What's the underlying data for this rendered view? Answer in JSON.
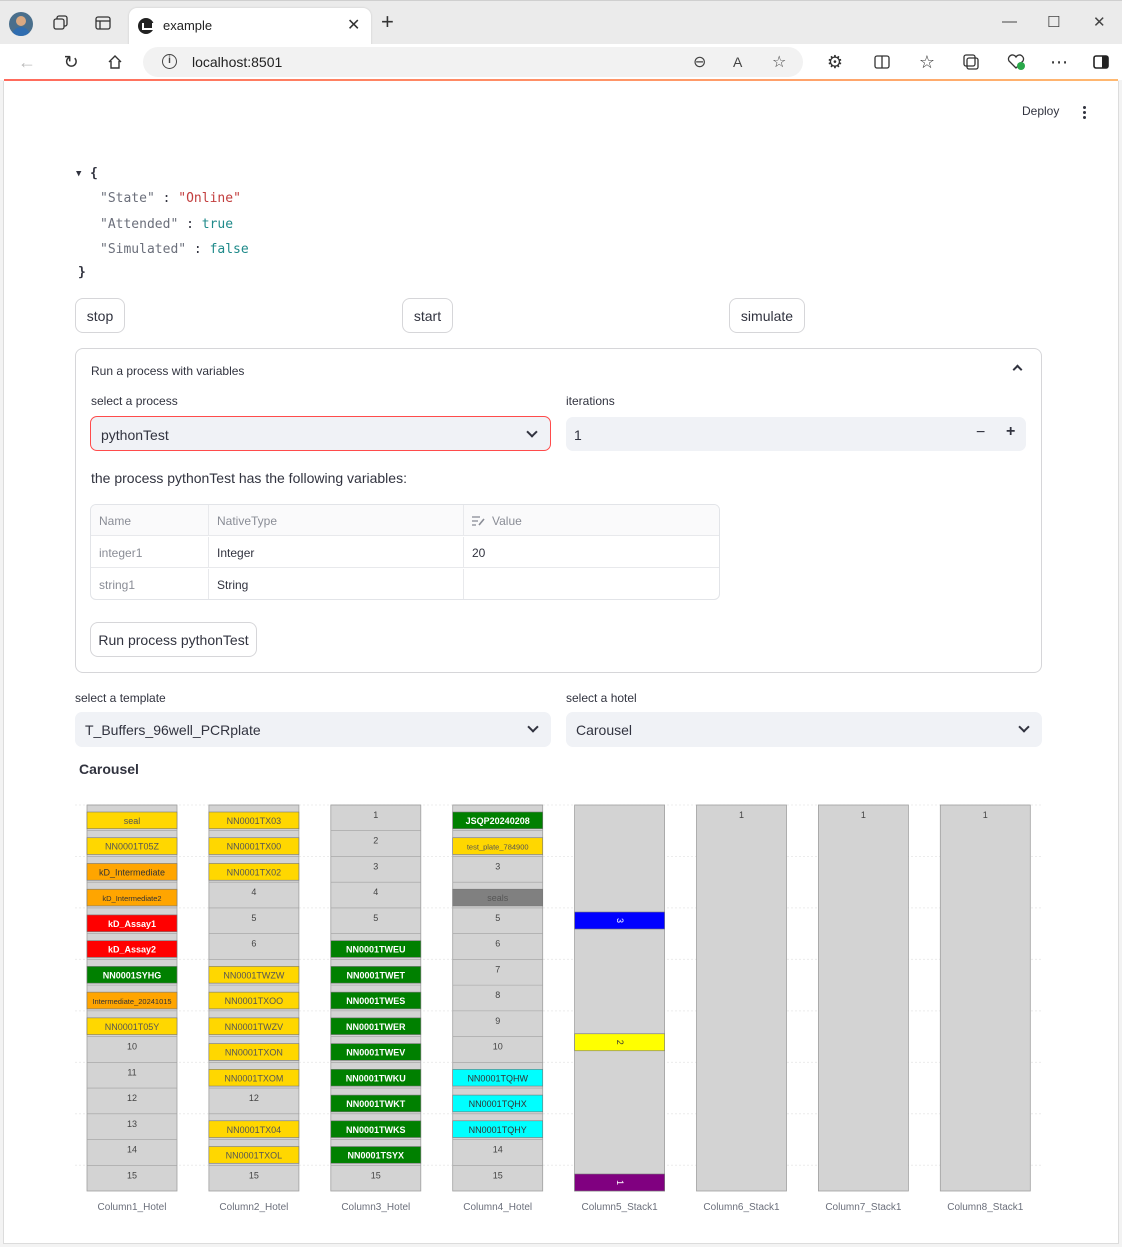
{
  "browser": {
    "tab_title": "example",
    "url": "localhost:8501"
  },
  "header": {
    "deploy_label": "Deploy"
  },
  "status": {
    "open": "{",
    "close": "}",
    "entries": [
      {
        "key": "\"State\"",
        "sep": " : ",
        "value": "\"Online\"",
        "kind": "string"
      },
      {
        "key": "\"Attended\"",
        "sep": " : ",
        "value": "true",
        "kind": "bool"
      },
      {
        "key": "\"Simulated\"",
        "sep": " : ",
        "value": "false",
        "kind": "bool"
      }
    ]
  },
  "controls": {
    "stop": "stop",
    "start": "start",
    "simulate": "simulate"
  },
  "expander": {
    "title": "Run a process with variables",
    "process_label": "select a process",
    "process_value": "pythonTest",
    "iterations_label": "iterations",
    "iterations_value": "1",
    "minus": "−",
    "plus": "+",
    "variables_text": "the process pythonTest has the following variables:",
    "table": {
      "headers": [
        "Name",
        "NativeType",
        "Value"
      ],
      "rows": [
        [
          "integer1",
          "Integer",
          "20"
        ],
        [
          "string1",
          "String",
          ""
        ]
      ]
    },
    "run_button": "Run process pythonTest"
  },
  "template": {
    "label": "select a template",
    "value": "T_Buffers_96well_PCRplate"
  },
  "hotel": {
    "label": "select a hotel",
    "value": "Carousel"
  },
  "section_title": "Carousel",
  "colors": {
    "empty": "#d3d3d3",
    "gold": "#ffd700",
    "orange": "#ffa500",
    "red": "#ff0000",
    "green": "#008000",
    "gray": "#808080",
    "cyan": "#00ffff",
    "blue": "#0000ff",
    "yellow": "#ffff00",
    "purple": "#800080"
  },
  "chart_data": {
    "type": "bar",
    "categories": [
      "Column1_Hotel",
      "Column2_Hotel",
      "Column3_Hotel",
      "Column4_Hotel",
      "Column5_Stack1",
      "Column6_Stack1",
      "Column7_Stack1",
      "Column8_Stack1"
    ],
    "columns": [
      {
        "name": "Column1_Hotel",
        "slots": [
          {
            "label": "seal",
            "color": "gold"
          },
          {
            "label": "NN0001T05Z",
            "color": "gold"
          },
          {
            "label": "kD_Intermediate",
            "color": "orange"
          },
          {
            "label": "kD_Intermediate2",
            "color": "orange"
          },
          {
            "label": "kD_Assay1",
            "color": "red"
          },
          {
            "label": "kD_Assay2",
            "color": "red"
          },
          {
            "label": "NN0001SYHG",
            "color": "green"
          },
          {
            "label": "Intermediate_20241015",
            "color": "orange"
          },
          {
            "label": "NN0001T05Y",
            "color": "gold"
          },
          {
            "label": "10",
            "color": "empty"
          },
          {
            "label": "11",
            "color": "empty"
          },
          {
            "label": "12",
            "color": "empty"
          },
          {
            "label": "13",
            "color": "empty"
          },
          {
            "label": "14",
            "color": "empty"
          },
          {
            "label": "15",
            "color": "empty"
          }
        ]
      },
      {
        "name": "Column2_Hotel",
        "slots": [
          {
            "label": "NN0001TX03",
            "color": "gold"
          },
          {
            "label": "NN0001TX00",
            "color": "gold"
          },
          {
            "label": "NN0001TX02",
            "color": "gold"
          },
          {
            "label": "4",
            "color": "empty"
          },
          {
            "label": "5",
            "color": "empty"
          },
          {
            "label": "6",
            "color": "empty"
          },
          {
            "label": "NN0001TWZW",
            "color": "gold"
          },
          {
            "label": "NN0001TXOO",
            "color": "gold"
          },
          {
            "label": "NN0001TWZV",
            "color": "gold"
          },
          {
            "label": "NN0001TXON",
            "color": "gold"
          },
          {
            "label": "NN0001TXOM",
            "color": "gold"
          },
          {
            "label": "12",
            "color": "empty"
          },
          {
            "label": "NN0001TX04",
            "color": "gold"
          },
          {
            "label": "NN0001TXOL",
            "color": "gold"
          },
          {
            "label": "15",
            "color": "empty"
          }
        ]
      },
      {
        "name": "Column3_Hotel",
        "slots": [
          {
            "label": "1",
            "color": "empty"
          },
          {
            "label": "2",
            "color": "empty"
          },
          {
            "label": "3",
            "color": "empty"
          },
          {
            "label": "4",
            "color": "empty"
          },
          {
            "label": "5",
            "color": "empty"
          },
          {
            "label": "NN0001TWEU",
            "color": "green"
          },
          {
            "label": "NN0001TWET",
            "color": "green"
          },
          {
            "label": "NN0001TWES",
            "color": "green"
          },
          {
            "label": "NN0001TWER",
            "color": "green"
          },
          {
            "label": "NN0001TWEV",
            "color": "green"
          },
          {
            "label": "NN0001TWKU",
            "color": "green"
          },
          {
            "label": "NN0001TWKT",
            "color": "green"
          },
          {
            "label": "NN0001TWKS",
            "color": "green"
          },
          {
            "label": "NN0001TSYX",
            "color": "green"
          },
          {
            "label": "15",
            "color": "empty"
          }
        ]
      },
      {
        "name": "Column4_Hotel",
        "slots": [
          {
            "label": "JSQP20240208",
            "color": "green"
          },
          {
            "label": "test_plate_784900",
            "color": "gold"
          },
          {
            "label": "3",
            "color": "empty"
          },
          {
            "label": "seals",
            "color": "gray"
          },
          {
            "label": "5",
            "color": "empty"
          },
          {
            "label": "6",
            "color": "empty"
          },
          {
            "label": "7",
            "color": "empty"
          },
          {
            "label": "8",
            "color": "empty"
          },
          {
            "label": "9",
            "color": "empty"
          },
          {
            "label": "10",
            "color": "empty"
          },
          {
            "label": "NN0001TQHW",
            "color": "cyan"
          },
          {
            "label": "NN0001TQHX",
            "color": "cyan"
          },
          {
            "label": "NN0001TQHY",
            "color": "cyan"
          },
          {
            "label": "14",
            "color": "empty"
          },
          {
            "label": "15",
            "color": "empty"
          }
        ]
      },
      {
        "name": "Column5_Stack1",
        "stack": [
          {
            "label": "3",
            "color": "blue",
            "level": 0.71
          },
          {
            "label": "2",
            "color": "yellow",
            "level": 0.38
          },
          {
            "label": "1",
            "color": "purple",
            "level": 0.0
          }
        ]
      },
      {
        "name": "Column6_Stack1",
        "stack": [
          {
            "label": "1",
            "color": "empty",
            "level": 1.0
          }
        ]
      },
      {
        "name": "Column7_Stack1",
        "stack": [
          {
            "label": "1",
            "color": "empty",
            "level": 1.0
          }
        ]
      },
      {
        "name": "Column8_Stack1",
        "stack": [
          {
            "label": "1",
            "color": "empty",
            "level": 1.0
          }
        ]
      }
    ]
  }
}
